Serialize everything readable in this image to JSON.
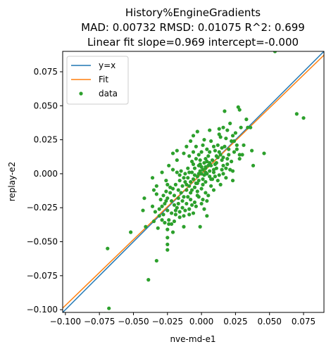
{
  "chart_data": {
    "type": "scatter",
    "title_lines": [
      "History%EngineGradients",
      "MAD: 0.00732 RMSD: 0.01075 R^2: 0.699",
      "Linear fit slope=0.969 intercept=-0.000"
    ],
    "xlabel": "nve-md-e1",
    "ylabel": "replay-e2",
    "xlim": [
      -0.102,
      0.09
    ],
    "ylim": [
      -0.102,
      0.09
    ],
    "xticks": [
      -0.1,
      -0.075,
      -0.05,
      -0.025,
      0.0,
      0.025,
      0.05,
      0.075
    ],
    "xtick_labels": [
      "−0.100",
      "−0.075",
      "−0.050",
      "−0.025",
      "0.000",
      "0.025",
      "0.050",
      "0.075"
    ],
    "yticks": [
      -0.1,
      -0.075,
      -0.05,
      -0.025,
      0.0,
      0.025,
      0.05,
      0.075
    ],
    "ytick_labels": [
      "−0.100",
      "−0.075",
      "−0.050",
      "−0.025",
      "0.000",
      "0.025",
      "0.050",
      "0.075"
    ],
    "grid": false,
    "legend": {
      "placement": "top-left",
      "entries": [
        {
          "label": "y=x",
          "kind": "line",
          "color": "#1f77b4"
        },
        {
          "label": "Fit",
          "kind": "line",
          "color": "#ff7f0e"
        },
        {
          "label": "data",
          "kind": "marker",
          "color": "#2ca02c"
        }
      ]
    },
    "series": [
      {
        "name": "y=x",
        "kind": "line",
        "color": "#1f77b4",
        "slope": 1.0,
        "intercept": 0.0
      },
      {
        "name": "Fit",
        "kind": "line",
        "color": "#ff7f0e",
        "slope": 0.969,
        "intercept": 0.0
      },
      {
        "name": "data",
        "kind": "scatter",
        "color": "#2ca02c",
        "points": [
          [
            0.054,
            0.09
          ],
          [
            0.07,
            0.044
          ],
          [
            0.075,
            0.041
          ],
          [
            0.046,
            0.015
          ],
          [
            0.037,
            0.017
          ],
          [
            0.034,
            0.034
          ],
          [
            0.033,
            0.04
          ],
          [
            0.036,
            0.034
          ],
          [
            0.027,
            0.049
          ],
          [
            0.028,
            0.047
          ],
          [
            0.017,
            0.046
          ],
          [
            0.021,
            0.037
          ],
          [
            0.016,
            0.034
          ],
          [
            0.013,
            0.033
          ],
          [
            0.013,
            0.029
          ],
          [
            0.018,
            0.026
          ],
          [
            0.022,
            0.024
          ],
          [
            0.024,
            0.024
          ],
          [
            0.026,
            0.021
          ],
          [
            0.026,
            0.018
          ],
          [
            0.024,
            0.016
          ],
          [
            0.02,
            0.014
          ],
          [
            0.028,
            0.014
          ],
          [
            0.028,
            0.011
          ],
          [
            0.019,
            0.011
          ],
          [
            0.015,
            0.019
          ],
          [
            0.013,
            0.016
          ],
          [
            0.012,
            0.012
          ],
          [
            0.009,
            0.02
          ],
          [
            0.007,
            0.024
          ],
          [
            0.006,
            0.032
          ],
          [
            0.002,
            0.025
          ],
          [
            0.001,
            0.021
          ],
          [
            0.004,
            0.018
          ],
          [
            0.0,
            0.016
          ],
          [
            -0.002,
            0.014
          ],
          [
            -0.004,
            0.02
          ],
          [
            -0.001,
            0.01
          ],
          [
            0.003,
            0.011
          ],
          [
            0.008,
            0.01
          ],
          [
            0.01,
            0.007
          ],
          [
            0.007,
            0.006
          ],
          [
            0.011,
            0.004
          ],
          [
            0.015,
            0.003
          ],
          [
            0.016,
            0.006
          ],
          [
            0.021,
            0.003
          ],
          [
            0.009,
            0.001
          ],
          [
            0.006,
            0.002
          ],
          [
            0.003,
            0.005
          ],
          [
            0.001,
            0.003
          ],
          [
            -0.002,
            0.006
          ],
          [
            -0.005,
            0.004
          ],
          [
            -0.007,
            0.009
          ],
          [
            -0.009,
            0.013
          ],
          [
            -0.013,
            0.015
          ],
          [
            -0.018,
            0.01
          ],
          [
            -0.018,
            0.001
          ],
          [
            -0.015,
            0.002
          ],
          [
            -0.012,
            0.0
          ],
          [
            -0.01,
            0.004
          ],
          [
            -0.007,
            0.001
          ],
          [
            -0.005,
            -0.001
          ],
          [
            -0.003,
            -0.002
          ],
          [
            0.0,
            0.0
          ],
          [
            0.002,
            -0.001
          ],
          [
            0.004,
            0.0
          ],
          [
            0.006,
            -0.002
          ],
          [
            0.008,
            -0.004
          ],
          [
            0.01,
            -0.002
          ],
          [
            0.012,
            -0.005
          ],
          [
            0.014,
            -0.008
          ],
          [
            0.018,
            -0.003
          ],
          [
            0.023,
            -0.005
          ],
          [
            0.003,
            -0.006
          ],
          [
            0.001,
            -0.004
          ],
          [
            -0.002,
            -0.005
          ],
          [
            -0.004,
            -0.007
          ],
          [
            -0.006,
            -0.004
          ],
          [
            -0.008,
            -0.006
          ],
          [
            -0.01,
            -0.003
          ],
          [
            -0.012,
            -0.006
          ],
          [
            -0.014,
            -0.009
          ],
          [
            -0.016,
            -0.005
          ],
          [
            -0.019,
            -0.008
          ],
          [
            -0.021,
            -0.011
          ],
          [
            -0.023,
            -0.014
          ],
          [
            -0.026,
            -0.013
          ],
          [
            -0.028,
            -0.016
          ],
          [
            -0.03,
            -0.019
          ],
          [
            -0.033,
            -0.015
          ],
          [
            -0.035,
            -0.012
          ],
          [
            -0.036,
            -0.024
          ],
          [
            -0.034,
            -0.028
          ],
          [
            -0.031,
            -0.026
          ],
          [
            -0.027,
            -0.022
          ],
          [
            -0.025,
            -0.018
          ],
          [
            -0.022,
            -0.02
          ],
          [
            -0.02,
            -0.023
          ],
          [
            -0.017,
            -0.018
          ],
          [
            -0.015,
            -0.014
          ],
          [
            -0.013,
            -0.017
          ],
          [
            -0.011,
            -0.012
          ],
          [
            -0.009,
            -0.009
          ],
          [
            -0.007,
            -0.012
          ],
          [
            -0.005,
            -0.01
          ],
          [
            -0.003,
            -0.013
          ],
          [
            0.0,
            -0.011
          ],
          [
            0.003,
            -0.014
          ],
          [
            0.005,
            -0.016
          ],
          [
            0.001,
            -0.019
          ],
          [
            -0.002,
            -0.017
          ],
          [
            -0.005,
            -0.021
          ],
          [
            -0.008,
            -0.019
          ],
          [
            -0.011,
            -0.022
          ],
          [
            -0.014,
            -0.025
          ],
          [
            -0.016,
            -0.028
          ],
          [
            -0.019,
            -0.03
          ],
          [
            -0.022,
            -0.029
          ],
          [
            -0.025,
            -0.027
          ],
          [
            -0.028,
            -0.03
          ],
          [
            -0.024,
            -0.034
          ],
          [
            -0.02,
            -0.035
          ],
          [
            -0.018,
            -0.025
          ],
          [
            -0.013,
            -0.031
          ],
          [
            -0.009,
            -0.026
          ],
          [
            -0.006,
            -0.029
          ],
          [
            -0.004,
            -0.024
          ],
          [
            0.002,
            -0.026
          ],
          [
            0.004,
            -0.031
          ],
          [
            -0.001,
            -0.039
          ],
          [
            -0.013,
            -0.039
          ],
          [
            -0.021,
            -0.043
          ],
          [
            -0.025,
            -0.041
          ],
          [
            -0.032,
            -0.04
          ],
          [
            -0.035,
            -0.035
          ],
          [
            -0.041,
            -0.039
          ],
          [
            -0.043,
            -0.027
          ],
          [
            -0.042,
            -0.018
          ],
          [
            -0.036,
            -0.003
          ],
          [
            -0.033,
            -0.009
          ],
          [
            -0.026,
            -0.005
          ],
          [
            -0.029,
            0.001
          ],
          [
            -0.024,
            0.006
          ],
          [
            -0.021,
            0.015
          ],
          [
            -0.018,
            0.017
          ],
          [
            -0.011,
            0.02
          ],
          [
            -0.008,
            0.024
          ],
          [
            -0.006,
            0.028
          ],
          [
            -0.003,
            0.031
          ],
          [
            -0.021,
            0.003
          ],
          [
            -0.025,
            -0.008
          ],
          [
            -0.016,
            -0.001
          ],
          [
            -0.001,
            0.002
          ],
          [
            0.005,
            0.013
          ],
          [
            0.012,
            0.021
          ],
          [
            0.014,
            0.027
          ],
          [
            0.019,
            0.032
          ],
          [
            0.02,
            0.018
          ],
          [
            0.017,
            0.02
          ],
          [
            0.022,
            0.009
          ],
          [
            0.03,
            0.014
          ],
          [
            0.031,
            0.021
          ],
          [
            0.029,
            0.034
          ],
          [
            0.025,
            0.03
          ],
          [
            0.023,
            0.028
          ],
          [
            0.038,
            0.006
          ],
          [
            0.023,
            0.002
          ],
          [
            0.019,
            0.007
          ],
          [
            0.015,
            0.01
          ],
          [
            0.011,
            0.008
          ],
          [
            0.006,
            0.016
          ],
          [
            0.004,
            0.009
          ],
          [
            -0.001,
            0.007
          ],
          [
            -0.004,
            0.011
          ],
          [
            -0.006,
            0.016
          ],
          [
            -0.009,
            0.001
          ],
          [
            -0.011,
            -0.008
          ],
          [
            -0.013,
            -0.003
          ],
          [
            -0.017,
            -0.012
          ],
          [
            -0.02,
            -0.016
          ],
          [
            -0.023,
            -0.01
          ],
          [
            -0.026,
            -0.02
          ],
          [
            -0.029,
            -0.024
          ],
          [
            -0.031,
            -0.031
          ],
          [
            -0.029,
            -0.034
          ],
          [
            -0.022,
            -0.037
          ],
          [
            -0.027,
            -0.036
          ],
          [
            -0.016,
            -0.032
          ],
          [
            -0.009,
            -0.03
          ],
          [
            0.0,
            -0.022
          ],
          [
            0.007,
            -0.009
          ],
          [
            0.009,
            -0.012
          ],
          [
            0.013,
            -0.001
          ],
          [
            0.016,
            0.0
          ],
          [
            0.018,
            0.004
          ],
          [
            0.004,
            -0.02
          ],
          [
            -0.003,
            -0.016
          ],
          [
            -0.007,
            -0.023
          ],
          [
            -0.012,
            -0.027
          ],
          [
            -0.019,
            -0.027
          ],
          [
            -0.052,
            -0.043
          ],
          [
            -0.024,
            -0.037
          ],
          [
            -0.025,
            -0.047
          ],
          [
            -0.025,
            -0.052
          ],
          [
            -0.033,
            -0.064
          ],
          [
            -0.025,
            -0.056
          ],
          [
            -0.069,
            -0.055
          ],
          [
            -0.039,
            -0.078
          ],
          [
            -0.068,
            -0.099
          ],
          [
            -0.071,
            -0.103
          ],
          [
            0.003,
            0.004
          ],
          [
            0.002,
            0.008
          ],
          [
            0.005,
            0.006
          ],
          [
            0.007,
            -0.004
          ],
          [
            0.009,
            0.003
          ],
          [
            0.011,
            0.013
          ],
          [
            0.01,
            0.017
          ],
          [
            0.014,
            0.014
          ],
          [
            0.016,
            0.012
          ],
          [
            -0.003,
            -0.007
          ],
          [
            -0.006,
            0.007
          ],
          [
            -0.008,
            -0.014
          ],
          [
            -0.01,
            -0.017
          ],
          [
            -0.014,
            -0.02
          ],
          [
            -0.017,
            -0.022
          ],
          [
            0.0,
            0.005
          ],
          [
            0.001,
            -0.008
          ],
          [
            0.003,
            0.001
          ],
          [
            -0.002,
            0.0
          ],
          [
            0.006,
            0.008
          ]
        ]
      }
    ]
  }
}
